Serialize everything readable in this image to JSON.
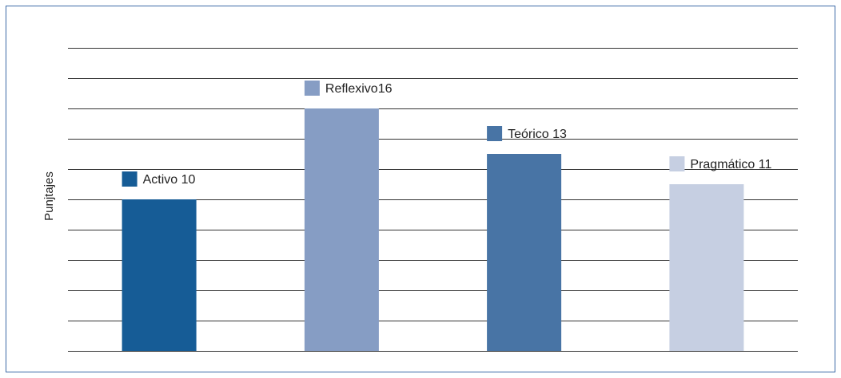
{
  "chart_data": {
    "type": "bar",
    "title": "",
    "xlabel": "",
    "ylabel": "Punjtajes",
    "ylim": [
      0,
      20
    ],
    "grid": true,
    "categories": [
      "Activo",
      "Reflexivo",
      "Teórico",
      "Pragmático"
    ],
    "values": [
      10,
      16,
      13,
      11
    ],
    "data_labels": [
      "Activo 10",
      "Reflexivo16",
      "Teórico 13",
      "Pragmático 11"
    ],
    "colors": [
      "#165c96",
      "#869dc4",
      "#4874a5",
      "#c6cfe2"
    ],
    "gridline_color": "#333333"
  }
}
